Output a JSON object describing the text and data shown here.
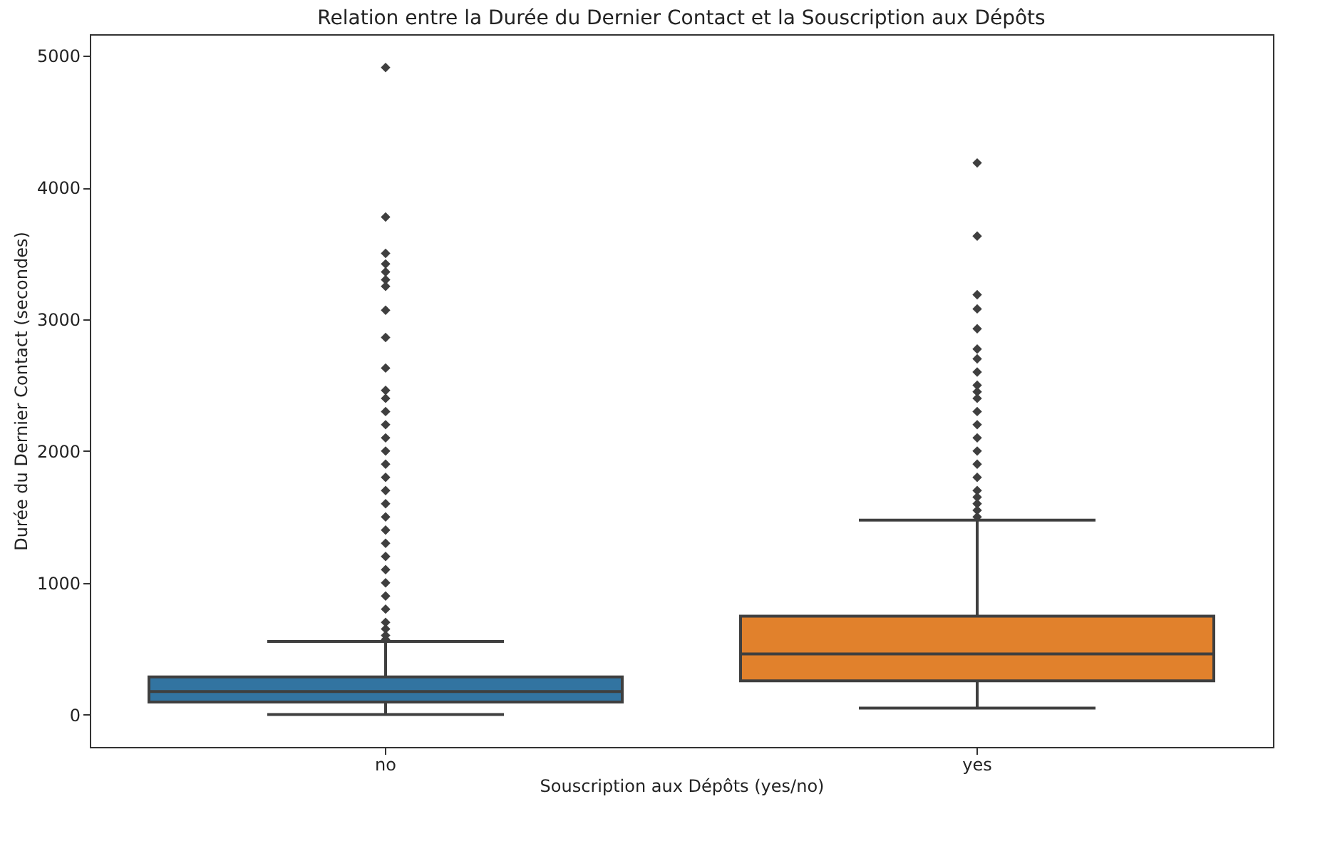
{
  "chart_data": {
    "type": "box",
    "title": "Relation entre la Durée du Dernier Contact et la Souscription aux Dépôts",
    "xlabel": "Souscription aux Dépôts (yes/no)",
    "ylabel": "Durée du Dernier Contact (secondes)",
    "categories": [
      "no",
      "yes"
    ],
    "colors": [
      "#3274a1",
      "#e1812c"
    ],
    "boxes": [
      {
        "low": 0,
        "q1": 95,
        "median": 175,
        "q3": 285,
        "high": 555,
        "outliers": [
          4911,
          3776,
          3500,
          3420,
          3360,
          3300,
          3250,
          3069,
          2862,
          2630,
          2460,
          2400,
          2300,
          2200,
          2100,
          2000,
          1900,
          1800,
          1700,
          1600,
          1500,
          1400,
          1300,
          1200,
          1100,
          1000,
          900,
          800,
          700,
          650,
          600,
          570
        ]
      },
      {
        "low": 49,
        "q1": 256,
        "median": 460,
        "q3": 747,
        "high": 1476,
        "outliers": [
          4187,
          3632,
          3187,
          3079,
          2928,
          2774,
          2700,
          2600,
          2500,
          2450,
          2400,
          2300,
          2200,
          2100,
          2000,
          1900,
          1800,
          1700,
          1650,
          1600,
          1550,
          1500
        ]
      }
    ],
    "marker": "diamond",
    "ylim": [
      -246,
      5164
    ],
    "yticks": [
      0,
      1000,
      2000,
      3000,
      4000,
      5000
    ]
  }
}
